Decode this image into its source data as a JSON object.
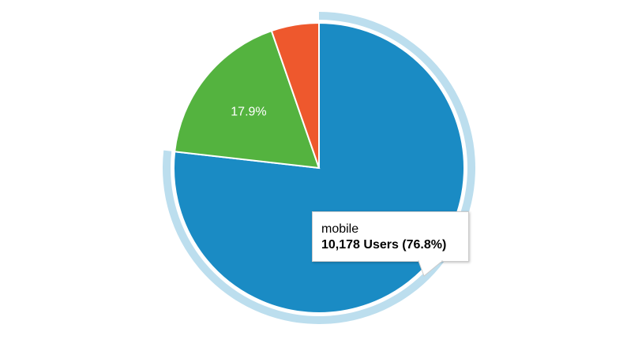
{
  "chart_data": {
    "type": "pie",
    "start_angle": "top, clockwise",
    "legend": "none",
    "slices": [
      {
        "label": "mobile",
        "percent": 76.8,
        "users": 10178,
        "color": "#1a8bc4",
        "highlighted": true
      },
      {
        "label": "",
        "percent": 17.9,
        "color": "#54b33f",
        "data_label": "17.9%"
      },
      {
        "label": "",
        "percent": 5.3,
        "color": "#ee582d"
      }
    ],
    "highlight_color": "#bcdeee"
  },
  "tooltip": {
    "name": "mobile",
    "value": "10,178 Users (76.8%)"
  }
}
